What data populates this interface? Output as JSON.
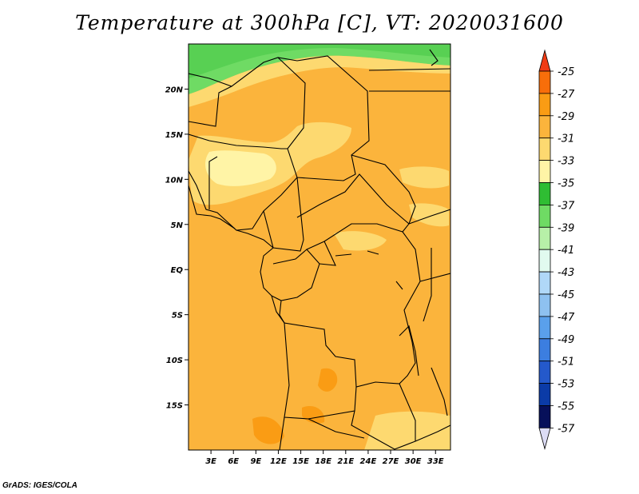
{
  "title": "Temperature at 300hPa [C], VT: 2020031600",
  "footer": "GrADS: IGES/COLA",
  "map": {
    "lon_range": [
      0,
      35
    ],
    "lat_range": [
      -20,
      25
    ],
    "lon_ticks": [
      "3E",
      "6E",
      "9E",
      "12E",
      "15E",
      "18E",
      "21E",
      "24E",
      "27E",
      "30E",
      "33E"
    ],
    "lat_ticks": [
      "20N",
      "15N",
      "10N",
      "5N",
      "EQ",
      "5S",
      "10S",
      "15S"
    ],
    "lon_tick_values": [
      3,
      6,
      9,
      12,
      15,
      18,
      21,
      24,
      27,
      30,
      33
    ],
    "lat_tick_values": [
      20,
      15,
      10,
      5,
      0,
      -5,
      -10,
      -15
    ]
  },
  "colorbar": {
    "labels": [
      "-25",
      "-27",
      "-29",
      "-31",
      "-33",
      "-35",
      "-37",
      "-39",
      "-41",
      "-43",
      "-45",
      "-47",
      "-49",
      "-51",
      "-53",
      "-55",
      "-57"
    ],
    "colors": [
      "#f03b14",
      "#f86e0a",
      "#fa9c14",
      "#fbb43c",
      "#fdd970",
      "#fff4a6",
      "#2fbd33",
      "#6fdb64",
      "#b7f0a8",
      "#e1faef",
      "#b0d8f8",
      "#8ec1f0",
      "#5aa0eb",
      "#3c7ee0",
      "#2459cb",
      "#0b3ba7",
      "#07105a"
    ],
    "top_arrow_color": "#f03b14",
    "bottom_arrow_color": "#dcdcf5"
  }
}
